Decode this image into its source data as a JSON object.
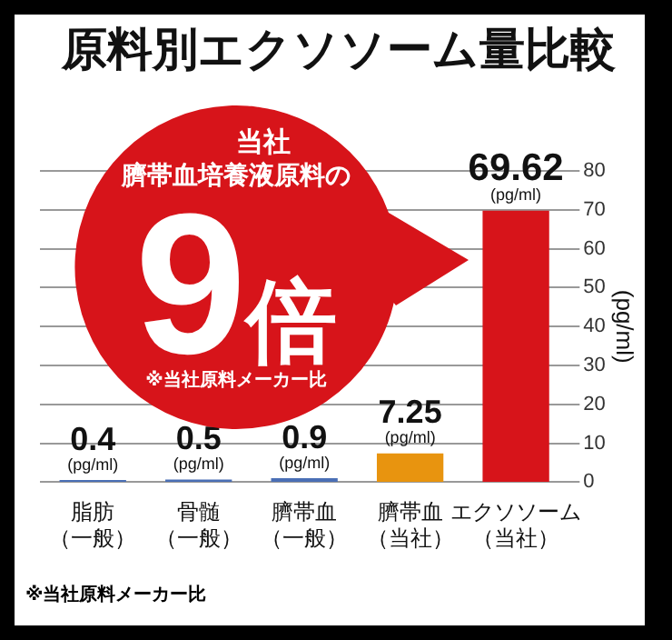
{
  "chart_data": {
    "type": "bar",
    "title": "原料別エクソソーム量比較",
    "categories": [
      "脂肪（一般）",
      "骨髄（一般）",
      "臍帯血（一般）",
      "臍帯血（当社）",
      "エクソソーム（当社）"
    ],
    "values": [
      0.4,
      0.5,
      0.9,
      7.25,
      69.62
    ],
    "colors": [
      "#4a6fb5",
      "#4a6fb5",
      "#4a6fb5",
      "#e8940f",
      "#d7141a"
    ],
    "value_labels": [
      "0.4\n(pg/ml)",
      "0.5\n(pg/ml)",
      "0.9\n(pg/ml)",
      "7.25\n(pg/ml)",
      "69.62\n(pg/ml)"
    ],
    "ylabel": "(pg/ml)",
    "ylim": [
      0,
      80
    ],
    "yticks": [
      0,
      10,
      20,
      30,
      40,
      50,
      60,
      70,
      80
    ],
    "grid": "y",
    "legend": false,
    "annotations": [
      "当社",
      "臍帯血培養液原料の",
      "9倍",
      "※当社原料メーカー比",
      "※当社原料メーカー比"
    ]
  }
}
